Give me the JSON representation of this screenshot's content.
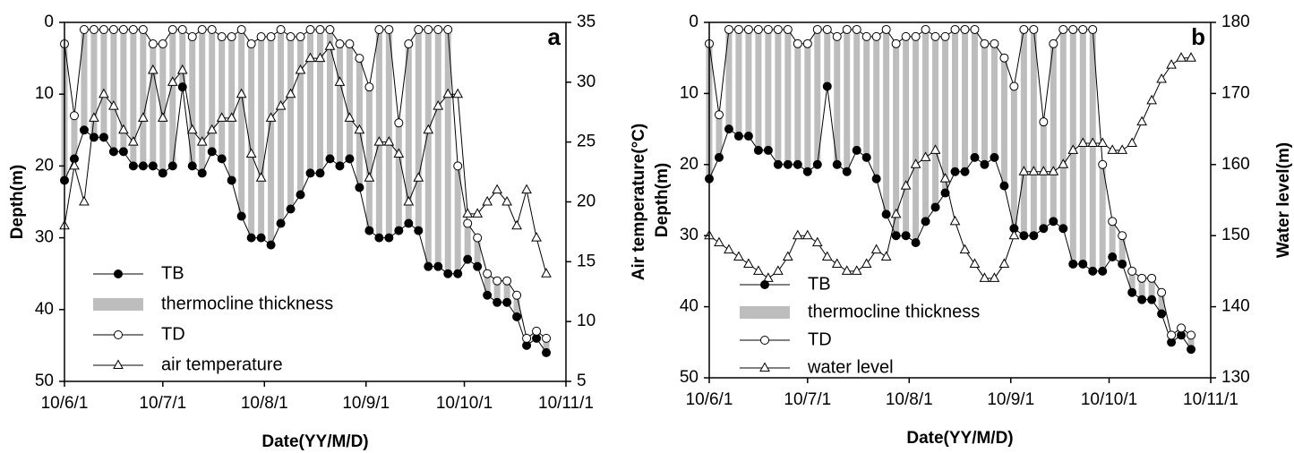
{
  "chart_data": [
    {
      "type": "line",
      "panel_label": "a",
      "x_label": "Date(YY/M/D)",
      "y_label": "Depth(m)",
      "y2_label": "Air temperature(°C)",
      "xlim": [
        "10/6/1",
        "10/11/1"
      ],
      "xticks": [
        "10/6/1",
        "10/7/1",
        "10/8/1",
        "10/9/1",
        "10/10/1",
        "10/11/1"
      ],
      "ylim": [
        0,
        50
      ],
      "y_inverted": true,
      "yticks": [
        0,
        10,
        20,
        30,
        40,
        50
      ],
      "y2lim": [
        5,
        35
      ],
      "y2ticks": [
        5,
        10,
        15,
        20,
        25,
        30,
        35
      ],
      "x": [
        "10/6/1",
        "10/6/4",
        "10/6/7",
        "10/6/10",
        "10/6/13",
        "10/6/16",
        "10/6/19",
        "10/6/22",
        "10/6/25",
        "10/6/28",
        "10/7/1",
        "10/7/4",
        "10/7/7",
        "10/7/10",
        "10/7/13",
        "10/7/16",
        "10/7/19",
        "10/7/22",
        "10/7/25",
        "10/7/28",
        "10/7/31",
        "10/8/3",
        "10/8/6",
        "10/8/9",
        "10/8/12",
        "10/8/15",
        "10/8/18",
        "10/8/21",
        "10/8/24",
        "10/8/27",
        "10/8/30",
        "10/9/2",
        "10/9/5",
        "10/9/8",
        "10/9/11",
        "10/9/14",
        "10/9/17",
        "10/9/20",
        "10/9/23",
        "10/9/26",
        "10/9/29",
        "10/10/2",
        "10/10/5",
        "10/10/8",
        "10/10/11",
        "10/10/14",
        "10/10/17",
        "10/10/20",
        "10/10/23",
        "10/10/26"
      ],
      "series": [
        {
          "name": "TB",
          "marker": "filled-circle",
          "color": "#000000",
          "values": [
            22,
            19,
            15,
            16,
            16,
            18,
            18,
            20,
            20,
            20,
            21,
            20,
            9,
            20,
            21,
            18,
            19,
            22,
            27,
            30,
            30,
            31,
            28,
            26,
            24,
            21,
            21,
            19,
            20,
            19,
            23,
            29,
            30,
            30,
            29,
            28,
            29,
            34,
            34,
            35,
            35,
            33,
            34,
            38,
            39,
            39,
            41,
            45,
            44,
            46
          ]
        },
        {
          "name": "thermocline thickness",
          "marker": "bar",
          "color": "#bdbdbd",
          "values": [
            19,
            6,
            14,
            15,
            15,
            17,
            17,
            19,
            19,
            17,
            18,
            19,
            8,
            18,
            20,
            17,
            17,
            20,
            26,
            27,
            28,
            29,
            27,
            24,
            22,
            20,
            20,
            18,
            17,
            16,
            18,
            20,
            29,
            29,
            15,
            25,
            28,
            33,
            33,
            34,
            15,
            5,
            4,
            3,
            3,
            3,
            3,
            1,
            1,
            2
          ]
        },
        {
          "name": "TD",
          "marker": "open-circle",
          "color": "#000000",
          "values": [
            3,
            13,
            1,
            1,
            1,
            1,
            1,
            1,
            1,
            3,
            3,
            1,
            1,
            2,
            1,
            1,
            2,
            2,
            1,
            3,
            2,
            2,
            1,
            2,
            2,
            1,
            1,
            1,
            3,
            3,
            5,
            9,
            1,
            1,
            14,
            3,
            1,
            1,
            1,
            1,
            20,
            28,
            30,
            35,
            36,
            36,
            38,
            44,
            43,
            44
          ]
        },
        {
          "name": "air temperature",
          "marker": "open-triangle",
          "color": "#000000",
          "axis": "y2",
          "values": [
            18,
            23,
            20,
            27,
            29,
            28,
            26,
            25,
            27,
            31,
            27,
            30,
            31,
            26,
            25,
            26,
            27,
            27,
            29,
            24,
            22,
            27,
            28,
            29,
            31,
            32,
            32,
            33,
            30,
            27,
            26,
            22,
            25,
            25,
            24,
            20,
            22,
            26,
            28,
            29,
            29,
            19,
            19,
            20,
            21,
            20,
            18,
            21,
            17,
            14
          ]
        }
      ]
    },
    {
      "type": "line",
      "panel_label": "b",
      "x_label": "Date(YY/M/D)",
      "y_label": "Depth(m)",
      "y2_label": "Water level(m)",
      "xlim": [
        "10/6/1",
        "10/11/1"
      ],
      "xticks": [
        "10/6/1",
        "10/7/1",
        "10/8/1",
        "10/9/1",
        "10/10/1",
        "10/11/1"
      ],
      "ylim": [
        0,
        50
      ],
      "y_inverted": true,
      "yticks": [
        0,
        10,
        20,
        30,
        40,
        50
      ],
      "y2lim": [
        130,
        180
      ],
      "y2ticks": [
        130,
        140,
        150,
        160,
        170,
        180
      ],
      "x": [
        "10/6/1",
        "10/6/4",
        "10/6/7",
        "10/6/10",
        "10/6/13",
        "10/6/16",
        "10/6/19",
        "10/6/22",
        "10/6/25",
        "10/6/28",
        "10/7/1",
        "10/7/4",
        "10/7/7",
        "10/7/10",
        "10/7/13",
        "10/7/16",
        "10/7/19",
        "10/7/22",
        "10/7/25",
        "10/7/28",
        "10/7/31",
        "10/8/3",
        "10/8/6",
        "10/8/9",
        "10/8/12",
        "10/8/15",
        "10/8/18",
        "10/8/21",
        "10/8/24",
        "10/8/27",
        "10/8/30",
        "10/9/2",
        "10/9/5",
        "10/9/8",
        "10/9/11",
        "10/9/14",
        "10/9/17",
        "10/9/20",
        "10/9/23",
        "10/9/26",
        "10/9/29",
        "10/10/2",
        "10/10/5",
        "10/10/8",
        "10/10/11",
        "10/10/14",
        "10/10/17",
        "10/10/20",
        "10/10/23",
        "10/10/26"
      ],
      "series": [
        {
          "name": "TB",
          "marker": "filled-circle",
          "color": "#000000",
          "values": [
            22,
            19,
            15,
            16,
            16,
            18,
            18,
            20,
            20,
            20,
            21,
            20,
            9,
            20,
            21,
            18,
            19,
            22,
            27,
            30,
            30,
            31,
            28,
            26,
            24,
            21,
            21,
            19,
            20,
            19,
            23,
            29,
            30,
            30,
            29,
            28,
            29,
            34,
            34,
            35,
            35,
            33,
            34,
            38,
            39,
            39,
            41,
            45,
            44,
            46
          ]
        },
        {
          "name": "thermocline thickness",
          "marker": "bar",
          "color": "#bdbdbd",
          "values": [
            19,
            6,
            14,
            15,
            15,
            17,
            17,
            19,
            19,
            17,
            18,
            19,
            8,
            18,
            20,
            17,
            17,
            20,
            26,
            27,
            28,
            29,
            27,
            24,
            22,
            20,
            20,
            18,
            17,
            16,
            18,
            20,
            29,
            29,
            15,
            25,
            28,
            33,
            33,
            34,
            15,
            5,
            4,
            3,
            3,
            3,
            3,
            1,
            1,
            2
          ]
        },
        {
          "name": "TD",
          "marker": "open-circle",
          "color": "#000000",
          "values": [
            3,
            13,
            1,
            1,
            1,
            1,
            1,
            1,
            1,
            3,
            3,
            1,
            1,
            2,
            1,
            1,
            2,
            2,
            1,
            3,
            2,
            2,
            1,
            2,
            2,
            1,
            1,
            1,
            3,
            3,
            5,
            9,
            1,
            1,
            14,
            3,
            1,
            1,
            1,
            1,
            20,
            28,
            30,
            35,
            36,
            36,
            38,
            44,
            43,
            44
          ]
        },
        {
          "name": "water level",
          "marker": "open-triangle",
          "color": "#000000",
          "axis": "y2",
          "values": [
            150,
            149,
            148,
            147,
            146,
            145,
            144,
            145,
            147,
            150,
            150,
            149,
            147,
            146,
            145,
            145,
            146,
            148,
            147,
            153,
            157,
            160,
            161,
            162,
            158,
            152,
            148,
            146,
            144,
            144,
            146,
            150,
            159,
            159,
            159,
            159,
            160,
            162,
            163,
            163,
            163,
            162,
            162,
            163,
            166,
            169,
            172,
            174,
            175,
            175
          ]
        }
      ]
    }
  ]
}
